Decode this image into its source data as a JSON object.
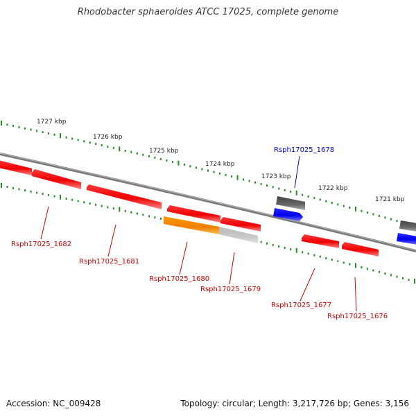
{
  "title": "Rhodobacter sphaeroides ATCC 17025, complete genome",
  "colors": {
    "backbone": "#808080",
    "forward_gene": "#0000ff",
    "reverse_gene": "#ff0000",
    "pseudo_gene": "#666666",
    "rna_gene": "#ff8c00",
    "tick": "#228b22",
    "forward_label": "#0000cc",
    "reverse_label": "#cc0000"
  },
  "scale_ticks": [
    {
      "label": "1727 kbp"
    },
    {
      "label": "1726 kbp"
    },
    {
      "label": "1725 kbp"
    },
    {
      "label": "1724 kbp"
    },
    {
      "label": "1723 kbp"
    },
    {
      "label": "1722 kbp"
    },
    {
      "label": "1721 kbp"
    }
  ],
  "genes": [
    {
      "name": "Rsph17025_1682",
      "strand": "reverse",
      "type": "cds"
    },
    {
      "name": "Rsph17025_1681",
      "strand": "reverse",
      "type": "cds"
    },
    {
      "name": "Rsph17025_1680",
      "strand": "reverse",
      "type": "rna"
    },
    {
      "name": "Rsph17025_1679",
      "strand": "reverse",
      "type": "cds"
    },
    {
      "name": "Rsph17025_1678",
      "strand": "forward",
      "type": "cds"
    },
    {
      "name": "Rsph17025_1677",
      "strand": "reverse",
      "type": "cds"
    },
    {
      "name": "Rsph17025_1676",
      "strand": "reverse",
      "type": "cds"
    }
  ],
  "footer": {
    "accession": "Accession: NC_009428",
    "stats": "Topology: circular; Length: 3,217,726 bp; Genes: 3,156"
  }
}
